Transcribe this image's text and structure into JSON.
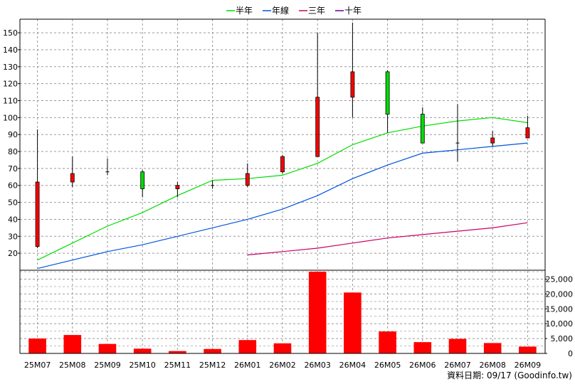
{
  "chart_data": [
    {
      "type": "candlestick",
      "categories": [
        "25M07",
        "25M08",
        "25M09",
        "25M10",
        "25M11",
        "25M12",
        "26M01",
        "26M02",
        "26M03",
        "26M04",
        "26M05",
        "26M06",
        "26M07",
        "26M08",
        "26M09"
      ],
      "ylim": [
        10,
        158
      ],
      "yticks": [
        20,
        30,
        40,
        50,
        60,
        70,
        80,
        90,
        100,
        110,
        120,
        130,
        140,
        150
      ],
      "grid": true,
      "legend_position": "top-center",
      "candles": [
        {
          "open": 24,
          "close": 62,
          "high": 93,
          "low": 23,
          "color": "red"
        },
        {
          "open": 62,
          "close": 67,
          "high": 77,
          "low": 59,
          "color": "red"
        },
        {
          "open": 68,
          "close": 68,
          "high": 76,
          "low": 66,
          "color": "black"
        },
        {
          "open": 68,
          "close": 58,
          "high": 69,
          "low": 53,
          "color": "green"
        },
        {
          "open": 58,
          "close": 60,
          "high": 62,
          "low": 53,
          "color": "red"
        },
        {
          "open": 60,
          "close": 60,
          "high": 63,
          "low": 58,
          "color": "black"
        },
        {
          "open": 60,
          "close": 67,
          "high": 73,
          "low": 59,
          "color": "red"
        },
        {
          "open": 68,
          "close": 77,
          "high": 78,
          "low": 67,
          "color": "red"
        },
        {
          "open": 77,
          "close": 112,
          "high": 150,
          "low": 77,
          "color": "red"
        },
        {
          "open": 112,
          "close": 127,
          "high": 156,
          "low": 100,
          "color": "red"
        },
        {
          "open": 127,
          "close": 102,
          "high": 128,
          "low": 91,
          "color": "green"
        },
        {
          "open": 102,
          "close": 85,
          "high": 106,
          "low": 85,
          "color": "green"
        },
        {
          "open": 85,
          "close": 85,
          "high": 108,
          "low": 74,
          "color": "black"
        },
        {
          "open": 85,
          "close": 88,
          "high": 92,
          "low": 83,
          "color": "red"
        },
        {
          "open": 88,
          "close": 94,
          "high": 101,
          "low": 88,
          "color": "red"
        }
      ],
      "series": [
        {
          "name": "半年",
          "color": "#00dd00",
          "values": [
            16,
            26,
            36,
            44,
            54,
            63,
            64,
            66,
            73,
            84,
            91,
            95,
            98,
            100,
            97
          ]
        },
        {
          "name": "年線",
          "color": "#0055dd",
          "values": [
            11,
            16,
            21,
            25,
            30,
            35,
            40,
            46,
            54,
            64,
            72,
            79,
            81,
            83,
            85
          ]
        },
        {
          "name": "三年",
          "color": "#cc0066",
          "values": [
            null,
            null,
            null,
            null,
            null,
            null,
            19,
            21,
            23,
            26,
            29,
            31,
            33,
            35,
            38
          ]
        },
        {
          "name": "十年",
          "color": "#660099",
          "values": [
            null,
            null,
            null,
            null,
            null,
            null,
            null,
            null,
            null,
            null,
            null,
            null,
            null,
            null,
            null
          ]
        }
      ]
    },
    {
      "type": "bar",
      "categories": [
        "25M07",
        "25M08",
        "25M09",
        "25M10",
        "25M11",
        "25M12",
        "26M01",
        "26M02",
        "26M03",
        "26M04",
        "26M05",
        "26M06",
        "26M07",
        "26M08",
        "26M09"
      ],
      "values": [
        5000,
        6200,
        3200,
        1600,
        800,
        1500,
        4500,
        3400,
        27500,
        20500,
        7400,
        3800,
        4900,
        3500,
        2300
      ],
      "ylim": [
        0,
        28000
      ],
      "yticks": [
        0,
        5000,
        10000,
        15000,
        20000,
        25000
      ],
      "yticklabels": [
        "0",
        "5,000",
        "10,000",
        "15,000",
        "20,000",
        "25,000"
      ],
      "color": "#ff0000"
    }
  ],
  "footer": {
    "note": "資料日期: 09/17 (Goodinfo.tw)"
  }
}
